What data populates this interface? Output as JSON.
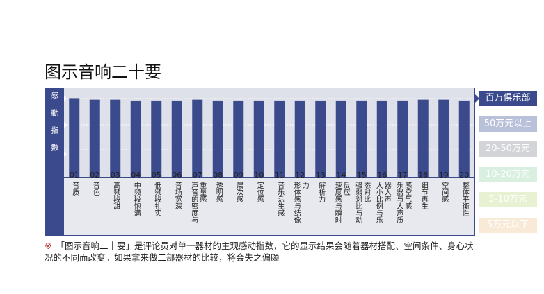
{
  "chart_data": {
    "type": "bar",
    "title": "图示音响二十要",
    "y_axis_label": "感動指數",
    "category_numbers": [
      "01",
      "02",
      "03",
      "04",
      "05",
      "06",
      "07",
      "08",
      "09",
      "10",
      "11",
      "12",
      "13",
      "14",
      "15",
      "16",
      "17",
      "18",
      "19",
      "20"
    ],
    "categories": [
      "音质",
      "音色",
      "高频段甜",
      "中频段饱满",
      "低频段扎实",
      "音场宽深",
      "声音的密度与重量感",
      "透明感",
      "层次感",
      "定位感",
      "音乐活生感",
      "形体感与结像力",
      "解析力",
      "速度感与瞬时反应",
      "强弱对比与动态对比",
      "大小比例与乐器人声",
      "乐器与人声质感空气感",
      "细节再生",
      "空间感",
      "整体平衡性"
    ],
    "values": [
      88,
      87,
      87,
      86,
      86,
      86,
      87,
      86,
      86,
      86,
      86,
      86,
      86,
      86,
      86,
      86,
      86,
      87,
      87,
      86
    ],
    "ylim": [
      0,
      100
    ],
    "color": "#3b4a8c",
    "tiers": [
      "百万俱乐部",
      "50万元以上",
      "20-50万元",
      "10-20万元",
      "5-10万元",
      "5万元以下"
    ],
    "note_mark": "※",
    "note": "「图示音响二十要」是评论员对单一器材的主观感动指数，它的显示结果会随着器材搭配、空间条件、身心状况的不同而改变。如果拿来做二部器材的比较，将会失之偏颇。"
  }
}
